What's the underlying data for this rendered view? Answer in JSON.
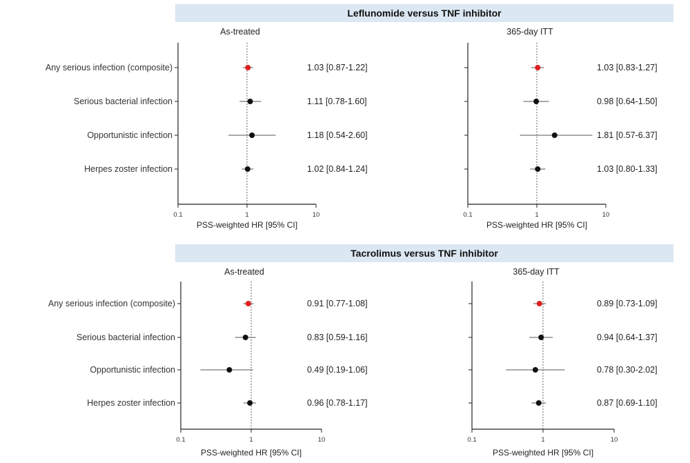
{
  "chart_data": [
    {
      "type": "forest",
      "comparison": "Leflunomide versus TNF inhibitor",
      "title": "As-treated",
      "xlabel": "PSS-weighted HR [95% CI]",
      "xscale": "log",
      "xlim": [
        0.1,
        10
      ],
      "xticks": [
        "0.1",
        "1",
        "10"
      ],
      "reference_line": 1,
      "rows": [
        {
          "label": "Any serious infection (composite)",
          "hr": 1.03,
          "lo": 0.87,
          "hi": 1.22,
          "text": "1.03 [0.87-1.22]",
          "color": "#e02020"
        },
        {
          "label": "Serious bacterial infection",
          "hr": 1.11,
          "lo": 0.78,
          "hi": 1.6,
          "text": "1.11 [0.78-1.60]",
          "color": "#111111"
        },
        {
          "label": "Opportunistic infection",
          "hr": 1.18,
          "lo": 0.54,
          "hi": 2.6,
          "text": "1.18 [0.54-2.60]",
          "color": "#111111"
        },
        {
          "label": "Herpes zoster infection",
          "hr": 1.02,
          "lo": 0.84,
          "hi": 1.24,
          "text": "1.02 [0.84-1.24]",
          "color": "#111111"
        }
      ]
    },
    {
      "type": "forest",
      "comparison": "Leflunomide versus TNF inhibitor",
      "title": "365-day ITT",
      "xlabel": "PSS-weighted HR [95% CI]",
      "xscale": "log",
      "xlim": [
        0.1,
        10
      ],
      "xticks": [
        "0.1",
        "1",
        "10"
      ],
      "reference_line": 1,
      "rows": [
        {
          "hr": 1.03,
          "lo": 0.83,
          "hi": 1.27,
          "text": "1.03 [0.83-1.27]",
          "color": "#e02020"
        },
        {
          "hr": 0.98,
          "lo": 0.64,
          "hi": 1.5,
          "text": "0.98 [0.64-1.50]",
          "color": "#111111"
        },
        {
          "hr": 1.81,
          "lo": 0.57,
          "hi": 6.37,
          "text": "1.81 [0.57-6.37]",
          "color": "#111111"
        },
        {
          "hr": 1.03,
          "lo": 0.8,
          "hi": 1.33,
          "text": "1.03 [0.80-1.33]",
          "color": "#111111"
        }
      ]
    },
    {
      "type": "forest",
      "comparison": "Tacrolimus versus TNF inhibitor",
      "title": "As-treated",
      "xlabel": "PSS-weighted HR [95% CI]",
      "xscale": "log",
      "xlim": [
        0.1,
        10
      ],
      "xticks": [
        "0.1",
        "1",
        "10"
      ],
      "reference_line": 1,
      "rows": [
        {
          "label": "Any serious infection (composite)",
          "hr": 0.91,
          "lo": 0.77,
          "hi": 1.08,
          "text": "0.91 [0.77-1.08]",
          "color": "#e02020"
        },
        {
          "label": "Serious bacterial infection",
          "hr": 0.83,
          "lo": 0.59,
          "hi": 1.16,
          "text": "0.83 [0.59-1.16]",
          "color": "#111111"
        },
        {
          "label": "Opportunistic infection",
          "hr": 0.49,
          "lo": 0.19,
          "hi": 1.06,
          "text": "0.49 [0.19-1.06]",
          "color": "#111111"
        },
        {
          "label": "Herpes zoster infection",
          "hr": 0.96,
          "lo": 0.78,
          "hi": 1.17,
          "text": "0.96 [0.78-1.17]",
          "color": "#111111"
        }
      ]
    },
    {
      "type": "forest",
      "comparison": "Tacrolimus versus TNF inhibitor",
      "title": "365-day ITT",
      "xlabel": "PSS-weighted HR [95% CI]",
      "xscale": "log",
      "xlim": [
        0.1,
        10
      ],
      "xticks": [
        "0.1",
        "1",
        "10"
      ],
      "reference_line": 1,
      "rows": [
        {
          "hr": 0.89,
          "lo": 0.73,
          "hi": 1.09,
          "text": "0.89 [0.73-1.09]",
          "color": "#e02020"
        },
        {
          "hr": 0.94,
          "lo": 0.64,
          "hi": 1.37,
          "text": "0.94 [0.64-1.37]",
          "color": "#111111"
        },
        {
          "hr": 0.78,
          "lo": 0.3,
          "hi": 2.02,
          "text": "0.78 [0.30-2.02]",
          "color": "#111111"
        },
        {
          "hr": 0.87,
          "lo": 0.69,
          "hi": 1.1,
          "text": "0.87 [0.69-1.10]",
          "color": "#111111"
        }
      ]
    }
  ],
  "banners": [
    "Leflunomide versus TNF inhibitor",
    "Tacrolimus versus TNF inhibitor"
  ]
}
